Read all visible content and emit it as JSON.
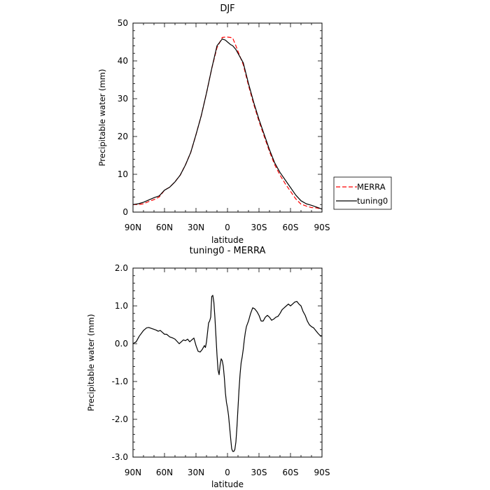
{
  "colors": {
    "merra": "#ff0000",
    "tuning0": "#000000",
    "axis": "#000000",
    "background": "#ffffff"
  },
  "chart_data": [
    {
      "type": "line",
      "title": "DJF",
      "xlabel": "latitude",
      "ylabel": "Precipitable water (mm)",
      "xlim": [
        90,
        -90
      ],
      "ylim": [
        0,
        50
      ],
      "x_ticks": [
        90,
        60,
        30,
        0,
        -30,
        -60,
        -90
      ],
      "x_tick_labels": [
        "90N",
        "60N",
        "30N",
        "0",
        "30S",
        "60S",
        "90S"
      ],
      "y_ticks": [
        0,
        10,
        20,
        30,
        40,
        50
      ],
      "y_tick_labels": [
        "0",
        "10",
        "20",
        "30",
        "40",
        "50"
      ],
      "grid": false,
      "legend": "outside-right",
      "series": [
        {
          "name": "MERRA",
          "style": "dashed",
          "color": "#ff0000",
          "x": [
            90,
            85,
            80,
            75,
            70,
            65,
            60,
            55,
            50,
            45,
            40,
            35,
            30,
            25,
            20,
            15,
            10,
            5,
            2,
            0,
            -3,
            -5,
            -8,
            -10,
            -15,
            -20,
            -25,
            -30,
            -35,
            -40,
            -45,
            -50,
            -55,
            -60,
            -65,
            -70,
            -75,
            -80,
            -85,
            -90
          ],
          "y": [
            2.0,
            2.0,
            2.2,
            2.8,
            3.3,
            4.0,
            5.8,
            6.6,
            8.0,
            9.8,
            12.5,
            15.8,
            20.5,
            25.5,
            31.5,
            38.0,
            43.5,
            46.2,
            46.3,
            46.3,
            46.2,
            46.0,
            44.0,
            42.5,
            39.0,
            33.5,
            28.5,
            24.0,
            20.0,
            16.0,
            12.5,
            9.8,
            7.5,
            5.5,
            3.5,
            2.1,
            1.6,
            1.2,
            1.1,
            0.8
          ]
        },
        {
          "name": "tuning0",
          "style": "solid",
          "color": "#000000",
          "x": [
            90,
            85,
            80,
            75,
            70,
            65,
            60,
            55,
            50,
            45,
            40,
            35,
            30,
            25,
            20,
            15,
            10,
            5,
            2,
            0,
            -3,
            -5,
            -8,
            -10,
            -15,
            -20,
            -25,
            -30,
            -35,
            -40,
            -45,
            -50,
            -55,
            -60,
            -65,
            -70,
            -75,
            -80,
            -85,
            -90
          ],
          "y": [
            2.0,
            2.2,
            2.6,
            3.2,
            3.8,
            4.3,
            5.8,
            6.6,
            8.0,
            9.8,
            12.5,
            15.8,
            20.5,
            25.5,
            31.5,
            38.0,
            44.0,
            45.8,
            45.5,
            45.0,
            44.3,
            44.0,
            43.0,
            42.0,
            39.5,
            34.0,
            29.0,
            24.5,
            20.5,
            16.5,
            13.0,
            10.5,
            8.5,
            6.5,
            4.5,
            3.0,
            2.2,
            1.8,
            1.3,
            0.8
          ]
        }
      ]
    },
    {
      "type": "line",
      "title": "tuning0 - MERRA",
      "xlabel": "latitude",
      "ylabel": "Precipitable water (mm)",
      "xlim": [
        90,
        -90
      ],
      "ylim": [
        -3.0,
        2.0
      ],
      "x_ticks": [
        90,
        60,
        30,
        0,
        -30,
        -60,
        -90
      ],
      "x_tick_labels": [
        "90N",
        "60N",
        "30N",
        "0",
        "30S",
        "60S",
        "90S"
      ],
      "y_ticks": [
        2.0,
        1.0,
        0.0,
        -1.0,
        -2.0,
        -3.0
      ],
      "y_tick_labels": [
        "2.0",
        "1.0",
        "0.0",
        "-1.0",
        "-2.0",
        "-3.0"
      ],
      "grid": false,
      "series": [
        {
          "style": "solid",
          "color": "#000000",
          "x": [
            90,
            87,
            84,
            80,
            77,
            75,
            72,
            70,
            68,
            66,
            64,
            62,
            60,
            58,
            55,
            52,
            50,
            48,
            46,
            44,
            42,
            40,
            38,
            36,
            34,
            32,
            30,
            28,
            26,
            24,
            22,
            21,
            20,
            19,
            18,
            17,
            16,
            15,
            14,
            13,
            12,
            11,
            10,
            9,
            8,
            7,
            6,
            5,
            4,
            3,
            2,
            1,
            0,
            -1,
            -2,
            -3,
            -4,
            -5,
            -6,
            -7,
            -8,
            -9,
            -10,
            -11,
            -12,
            -13,
            -14,
            -15,
            -16,
            -17,
            -18,
            -20,
            -22,
            -24,
            -26,
            -28,
            -30,
            -32,
            -34,
            -36,
            -38,
            -40,
            -42,
            -44,
            -46,
            -48,
            -50,
            -52,
            -54,
            -56,
            -58,
            -60,
            -62,
            -64,
            -66,
            -68,
            -70,
            -72,
            -74,
            -76,
            -78,
            -80,
            -82,
            -84,
            -86,
            -88,
            -90
          ],
          "y": [
            0.0,
            0.05,
            0.2,
            0.35,
            0.42,
            0.43,
            0.4,
            0.38,
            0.36,
            0.33,
            0.35,
            0.3,
            0.25,
            0.25,
            0.18,
            0.15,
            0.12,
            0.06,
            0.0,
            0.05,
            0.1,
            0.08,
            0.12,
            0.05,
            0.1,
            0.15,
            -0.05,
            -0.2,
            -0.22,
            -0.15,
            -0.05,
            -0.1,
            0.05,
            0.3,
            0.55,
            0.6,
            0.7,
            1.25,
            1.28,
            1.1,
            0.7,
            0.2,
            -0.3,
            -0.7,
            -0.82,
            -0.55,
            -0.4,
            -0.45,
            -0.6,
            -0.9,
            -1.3,
            -1.55,
            -1.7,
            -1.9,
            -2.2,
            -2.5,
            -2.78,
            -2.85,
            -2.85,
            -2.8,
            -2.6,
            -2.2,
            -1.7,
            -1.2,
            -0.8,
            -0.5,
            -0.35,
            -0.15,
            0.1,
            0.3,
            0.45,
            0.6,
            0.8,
            0.95,
            0.92,
            0.85,
            0.75,
            0.6,
            0.6,
            0.7,
            0.75,
            0.7,
            0.62,
            0.65,
            0.7,
            0.72,
            0.8,
            0.9,
            0.95,
            1.0,
            1.05,
            1.0,
            1.05,
            1.1,
            1.12,
            1.05,
            1.0,
            0.85,
            0.75,
            0.6,
            0.5,
            0.45,
            0.42,
            0.35,
            0.28,
            0.22,
            0.2
          ]
        }
      ]
    }
  ]
}
